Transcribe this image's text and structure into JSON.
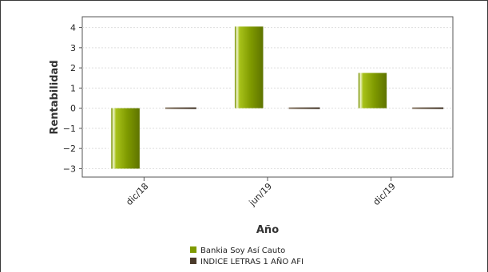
{
  "chart_data": {
    "type": "bar",
    "categories": [
      "dic/18",
      "jun/19",
      "dic/19"
    ],
    "series": [
      {
        "name": "Bankia Soy Así Cauto",
        "values": [
          -3.0,
          4.05,
          1.75
        ],
        "color": "#7f9a00"
      },
      {
        "name": "INDICE LETRAS 1 AÑO AFI",
        "values": [
          -0.04,
          -0.02,
          0.03
        ],
        "color": "#4a3a2a"
      }
    ],
    "xlabel": "Año",
    "ylabel": "Rentabilidad",
    "ylim": [
      -3.3,
      4.3
    ],
    "yticks": [
      4,
      3,
      2,
      1,
      0,
      -1,
      -2,
      -3
    ],
    "ytick_labels": [
      "4",
      "3",
      "2",
      "1",
      "0",
      "−1",
      "−2",
      "−3"
    ],
    "grid": true,
    "legend_position": "bottom"
  }
}
